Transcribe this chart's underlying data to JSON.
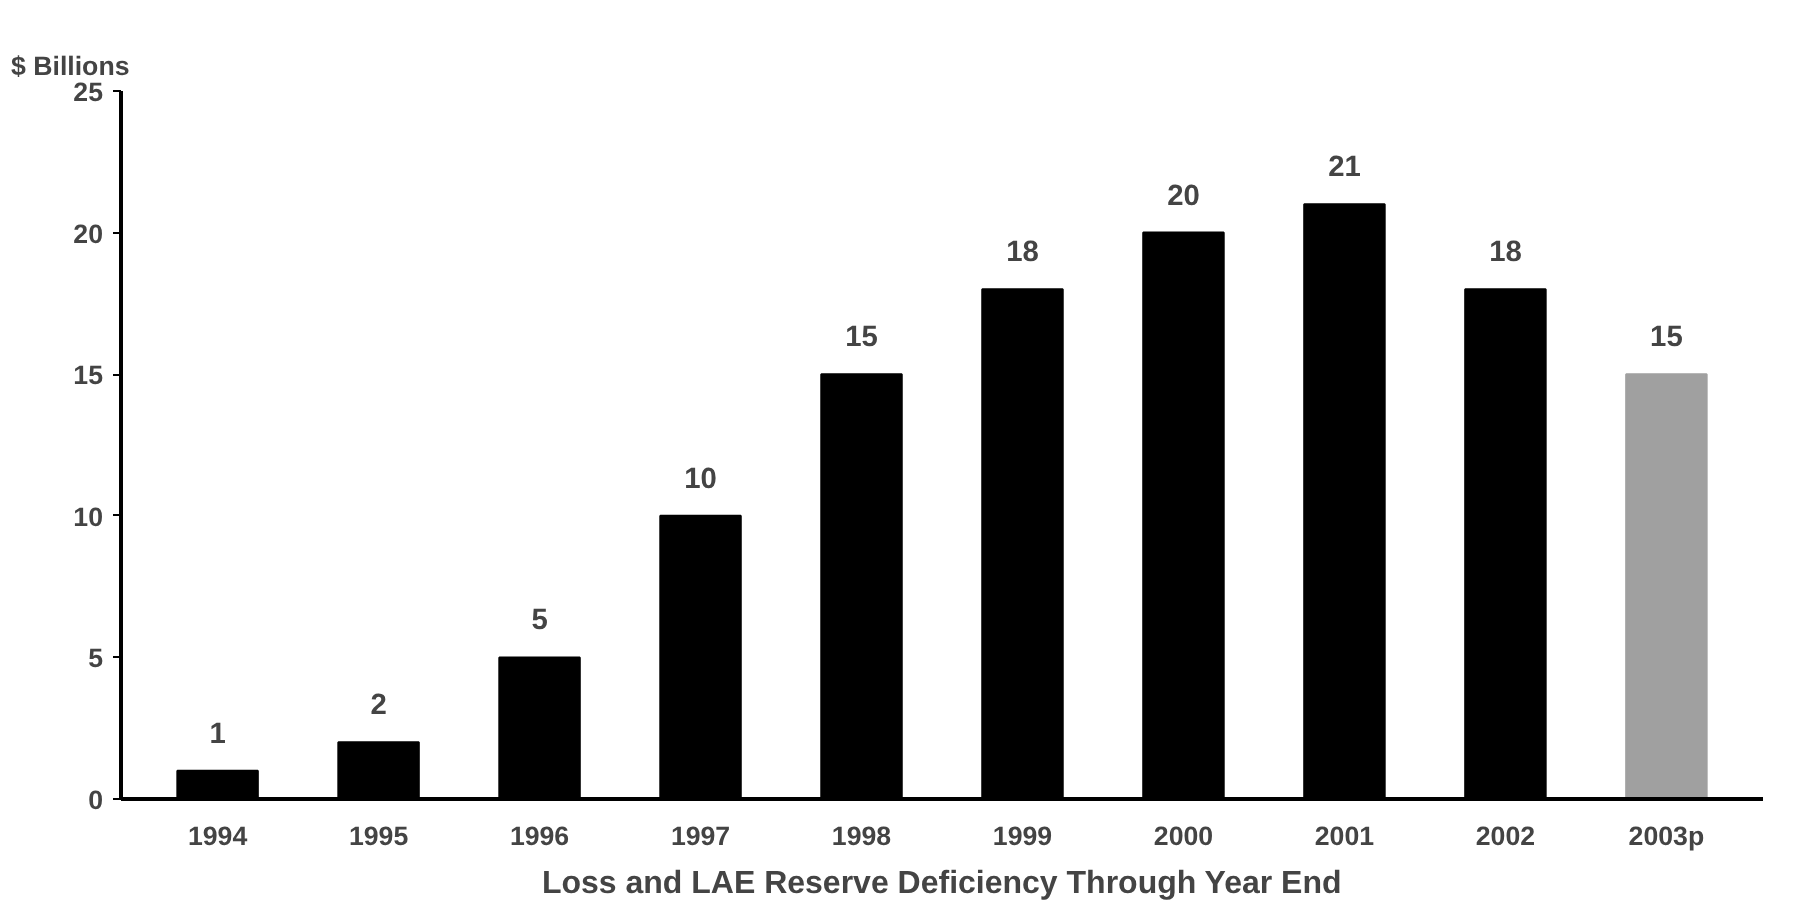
{
  "chart_data": {
    "type": "bar",
    "ylabel": "$ Billions",
    "xlabel": "Loss and LAE Reserve Deficiency Through Year End",
    "categories": [
      "1994",
      "1995",
      "1996",
      "1997",
      "1998",
      "1999",
      "2000",
      "2001",
      "2002",
      "2003p"
    ],
    "values": [
      1,
      2,
      5,
      10,
      15,
      18,
      20,
      21,
      18,
      15
    ],
    "colors": [
      "#000000",
      "#000000",
      "#000000",
      "#000000",
      "#000000",
      "#000000",
      "#000000",
      "#000000",
      "#000000",
      "#a0a0a0"
    ],
    "ylim": [
      0,
      25
    ],
    "yticks": [
      0,
      5,
      10,
      15,
      20,
      25
    ],
    "grid": false,
    "data_labels": true
  }
}
